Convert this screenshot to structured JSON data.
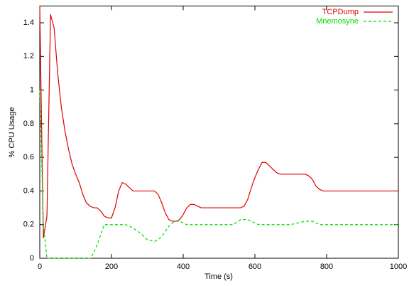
{
  "chart_data": {
    "type": "line",
    "xlabel": "Time (s)",
    "ylabel": "% CPU Usage",
    "x": [
      0,
      5,
      10,
      20,
      30,
      40,
      50,
      60,
      70,
      80,
      90,
      100,
      110,
      120,
      130,
      140,
      150,
      160,
      170,
      180,
      190,
      200,
      210,
      220,
      230,
      240,
      250,
      260,
      280,
      300,
      320,
      330,
      340,
      350,
      360,
      370,
      380,
      390,
      400,
      410,
      420,
      430,
      440,
      450,
      500,
      540,
      560,
      570,
      580,
      590,
      600,
      610,
      620,
      630,
      640,
      650,
      660,
      670,
      700,
      740,
      750,
      760,
      770,
      780,
      790,
      800,
      900,
      1000
    ],
    "series": [
      {
        "name": "TCPDump",
        "color": "#e00000",
        "dashed": false,
        "values": [
          1.5,
          0.8,
          0.12,
          0.25,
          1.45,
          1.37,
          1.1,
          0.9,
          0.76,
          0.65,
          0.56,
          0.5,
          0.45,
          0.38,
          0.33,
          0.31,
          0.3,
          0.3,
          0.28,
          0.25,
          0.24,
          0.24,
          0.3,
          0.4,
          0.45,
          0.44,
          0.42,
          0.4,
          0.4,
          0.4,
          0.4,
          0.38,
          0.33,
          0.27,
          0.23,
          0.22,
          0.22,
          0.23,
          0.26,
          0.3,
          0.32,
          0.32,
          0.31,
          0.3,
          0.3,
          0.3,
          0.3,
          0.31,
          0.35,
          0.42,
          0.48,
          0.53,
          0.57,
          0.57,
          0.55,
          0.53,
          0.51,
          0.5,
          0.5,
          0.5,
          0.49,
          0.47,
          0.43,
          0.41,
          0.4,
          0.4,
          0.4,
          0.4
        ]
      },
      {
        "name": "Mnemosyne",
        "color": "#00dd00",
        "dashed": true,
        "values": [
          1.0,
          0.6,
          0.2,
          0,
          0,
          0,
          0,
          0,
          0,
          0,
          0,
          0,
          0,
          0,
          0,
          0,
          0.03,
          0.08,
          0.14,
          0.2,
          0.2,
          0.2,
          0.2,
          0.2,
          0.2,
          0.2,
          0.19,
          0.18,
          0.15,
          0.11,
          0.1,
          0.11,
          0.13,
          0.16,
          0.19,
          0.21,
          0.22,
          0.22,
          0.21,
          0.2,
          0.2,
          0.2,
          0.2,
          0.2,
          0.2,
          0.2,
          0.23,
          0.23,
          0.23,
          0.22,
          0.21,
          0.2,
          0.2,
          0.2,
          0.2,
          0.2,
          0.2,
          0.2,
          0.2,
          0.22,
          0.22,
          0.22,
          0.21,
          0.2,
          0.2,
          0.2,
          0.2,
          0.2
        ]
      }
    ],
    "xlim": [
      0,
      1000
    ],
    "xticks": [
      0,
      200,
      400,
      600,
      800,
      1000
    ],
    "ylim": [
      0,
      1.5
    ],
    "yticks": [
      0,
      0.2,
      0.4,
      0.6,
      0.8,
      1,
      1.2,
      1.4
    ],
    "grid": false,
    "legend": "top-right"
  }
}
